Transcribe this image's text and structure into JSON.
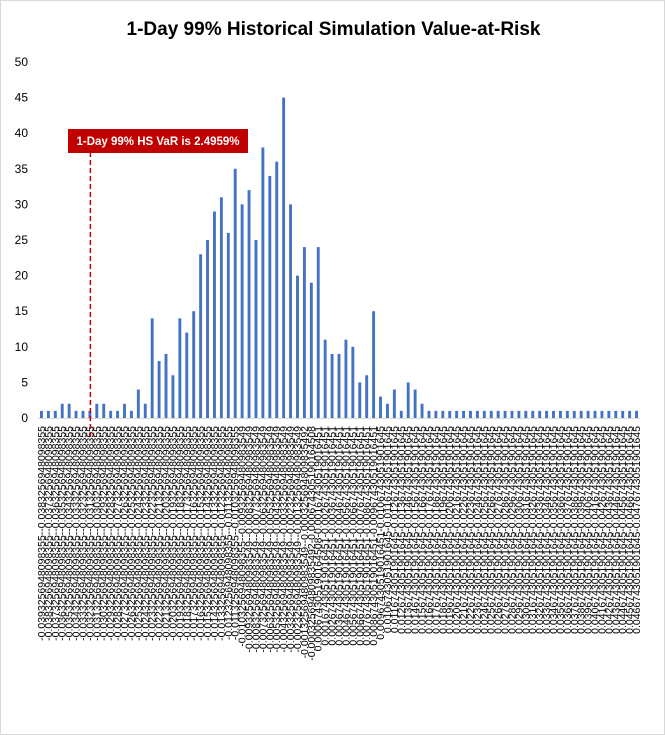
{
  "chart_data": {
    "type": "bar",
    "title": "1-Day 99% Historical Simulation Value-at-Risk",
    "xlabel": "",
    "ylabel": "",
    "ylim": [
      0,
      50
    ],
    "yticks": [
      0,
      5,
      10,
      15,
      20,
      25,
      30,
      35,
      40,
      45,
      50
    ],
    "grid": false,
    "legend": "none",
    "bar_color": "#4472C4",
    "annotation": {
      "text": "1-Day 99% HS VaR is 2.4959%",
      "category_index": 7,
      "box_color": "#C00000",
      "line_color": "#C00000"
    },
    "categories": [
      "-0.0393256948098355--0.0383256948098355",
      "-0.0383256948098355--0.0373256948098355",
      "-0.0373256948098355--0.0363256948098355",
      "-0.0363256948098355--0.0353256948098355",
      "-0.0353256948098355--0.0343256948098355",
      "-0.0343256948098355--0.0333256948098355",
      "-0.0333256948098355--0.0323256948098355",
      "-0.0323256948098355--0.0313256948098355",
      "-0.0313256948098355--0.0303256948098355",
      "-0.0303256948098355--0.0293256948098355",
      "-0.0293256948098355--0.0283256948098355",
      "-0.0283256948098355--0.0273256948098355",
      "-0.0273256948098355--0.0263256948098355",
      "-0.0263256948098355--0.0253256948098355",
      "-0.0253256948098355--0.0243256948098355",
      "-0.0243256948098355--0.0233256948098355",
      "-0.0233256948098355--0.0223256948098355",
      "-0.0223256948098355--0.0213256948098355",
      "-0.0213256948098355--0.0203256948098355",
      "-0.0203256948098355--0.0193256948098355",
      "-0.0193256948098355--0.0183256948098355",
      "-0.0183256948098355--0.0173256948098355",
      "-0.0173256948098355--0.0163256948098355",
      "-0.0163256948098355--0.0153256948098355",
      "-0.0153256948098355--0.0143256948098355",
      "-0.0143256948098355--0.0133256948098355",
      "-0.0133256948098355--0.0123256948098355",
      "-0.0123256948098355--0.0113256948098355",
      "-0.0113256948098355--0.0103256948098355",
      "-0.0103256948098355--0.00932569480983549",
      "-0.00932569480983549--0.00832569480983549",
      "-0.00832569480983549--0.00732569480983549",
      "-0.00732569480983549--0.00632569480983549",
      "-0.00632569480983549--0.00532569480983549",
      "-0.00532569480983549--0.00432569480983549",
      "-0.00432569480983549--0.00332569480983549",
      "-0.00332569480983549--0.00232569480983549",
      "-0.00232569480983549--0.00132569480983549",
      "-0.00132569480983549--0.000325694809835492",
      "-0.000325694809835492-0.000674305190164508",
      "0.000674305190164508-0.00167430519016451",
      "0.00167430519016451-0.00267430519016451",
      "0.00267430519016451-0.00367430519016451",
      "0.00367430519016451-0.00467430519016451",
      "0.00467430519016451-0.00567430519016451",
      "0.00567430519016451-0.00667430519016451",
      "0.00667430519016451-0.00767430519016451",
      "0.00767430519016451-0.00867430519016451",
      "0.00867430519016451-0.00967430519016451",
      "0.00967430519016451-0.0106743051901645",
      "0.0106743051901645-0.0116743051901645",
      "0.0116743051901645-0.0126743051901645",
      "0.0126743051901645-0.0136743051901645",
      "0.0136743051901645-0.0146743051901645",
      "0.0146743051901645-0.0156743051901645",
      "0.0156743051901645-0.0166743051901645",
      "0.0166743051901645-0.0176743051901645",
      "0.0176743051901645-0.0186743051901645",
      "0.0186743051901645-0.0196743051901645",
      "0.0196743051901645-0.0206743051901645",
      "0.0206743051901645-0.0216743051901645",
      "0.0216743051901645-0.0226743051901645",
      "0.0226743051901645-0.0236743051901645",
      "0.0236743051901645-0.0246743051901645",
      "0.0246743051901645-0.0256743051901645",
      "0.0256743051901645-0.0266743051901645",
      "0.0266743051901645-0.0276743051901645",
      "0.0276743051901645-0.0286743051901645",
      "0.0286743051901645-0.0296743051901645",
      "0.0296743051901645-0.0306743051901645",
      "0.0306743051901645-0.0316743051901645",
      "0.0316743051901645-0.0326743051901645",
      "0.0326743051901645-0.0336743051901645",
      "0.0336743051901645-0.0346743051901645",
      "0.0346743051901645-0.0356743051901645",
      "0.0356743051901645-0.0366743051901645",
      "0.0366743051901645-0.0376743051901645",
      "0.0376743051901645-0.0386743051901645",
      "0.0386743051901645-0.0396743051901645",
      "0.0396743051901645-0.0406743051901645",
      "0.0406743051901645-0.0416743051901645",
      "0.0416743051901645-0.0426743051901645",
      "0.0426743051901645-0.0436743051901645",
      "0.0436743051901645-0.0446743051901645",
      "0.0446743051901645-0.0456743051901645",
      "0.0456743051901645-0.0466743051901645",
      "0.0466743051901645-0.0476743051901645"
    ],
    "values": [
      1,
      1,
      1,
      2,
      2,
      1,
      1,
      1,
      2,
      2,
      1,
      1,
      2,
      1,
      4,
      2,
      14,
      8,
      9,
      6,
      14,
      12,
      15,
      23,
      25,
      29,
      31,
      26,
      35,
      30,
      32,
      25,
      38,
      34,
      36,
      45,
      30,
      20,
      24,
      19,
      24,
      11,
      9,
      9,
      11,
      10,
      5,
      6,
      15,
      3,
      2,
      4,
      1,
      5,
      4,
      2,
      1,
      1,
      1,
      1,
      1,
      1,
      1,
      1,
      1,
      1,
      1,
      1,
      1,
      1,
      1,
      1,
      1,
      1,
      1,
      1,
      1,
      1,
      1,
      1,
      1,
      1,
      1,
      1,
      1,
      1,
      1
    ]
  }
}
